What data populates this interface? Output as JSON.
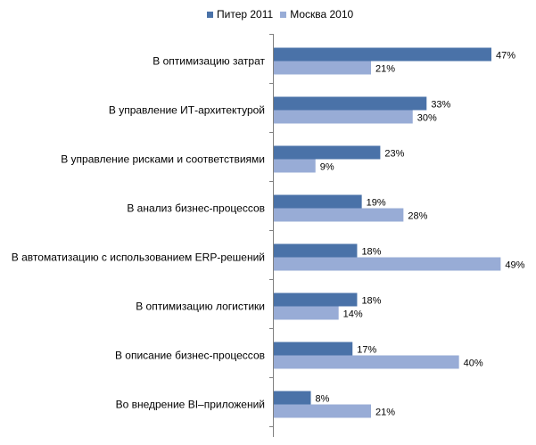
{
  "chart_data": {
    "type": "bar",
    "orientation": "horizontal",
    "categories": [
      "В оптимизацию затрат",
      "В управление ИТ-архитектурой",
      "В управление рисками и соответствиями",
      "В анализ бизнес-процессов",
      "В автоматизацию с использованием ERP-решений",
      "В оптимизацию логистики",
      "В описание бизнес-процессов",
      "Во внедрение BI–приложений"
    ],
    "series": [
      {
        "name": "Питер 2011",
        "color": "#4a72a8",
        "values": [
          47,
          33,
          23,
          19,
          18,
          18,
          17,
          8
        ]
      },
      {
        "name": "Москва 2010",
        "color": "#98acd6",
        "values": [
          21,
          30,
          9,
          28,
          49,
          14,
          40,
          21
        ]
      }
    ],
    "value_suffix": "%",
    "xlim": [
      0,
      52
    ],
    "grid": false,
    "legend_position": "top"
  }
}
